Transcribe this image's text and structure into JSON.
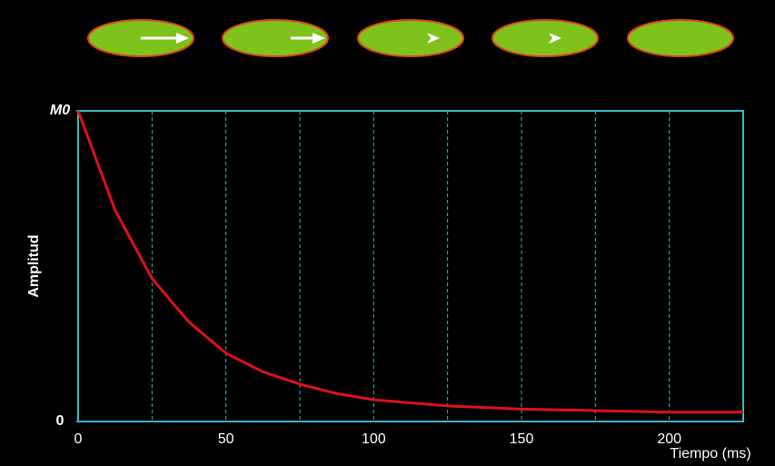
{
  "chart_data": {
    "type": "line",
    "x_label": "Amplitud",
    "y_label": "Amplitud",
    "xlabel": "Tiempo  (ms)",
    "ylabel": "Amplitud",
    "x": [
      0,
      12.5,
      25,
      37.5,
      50,
      62.5,
      75,
      87.5,
      100,
      125,
      150,
      175,
      200,
      225
    ],
    "series": [
      {
        "color": "#e0101a",
        "values": [
          1.0,
          0.68,
          0.46,
          0.32,
          0.22,
          0.16,
          0.12,
          0.09,
          0.07,
          0.05,
          0.04,
          0.035,
          0.03,
          0.03
        ]
      }
    ],
    "xlim": [
      0,
      225
    ],
    "xticks": [
      0,
      50,
      100,
      150,
      200
    ],
    "minor_xticks": [
      25,
      75,
      125,
      175
    ],
    "ylim": [
      0,
      1
    ],
    "yticks": [
      0,
      {
        "value": 1,
        "label": "M0"
      }
    ],
    "grid": true
  }
}
